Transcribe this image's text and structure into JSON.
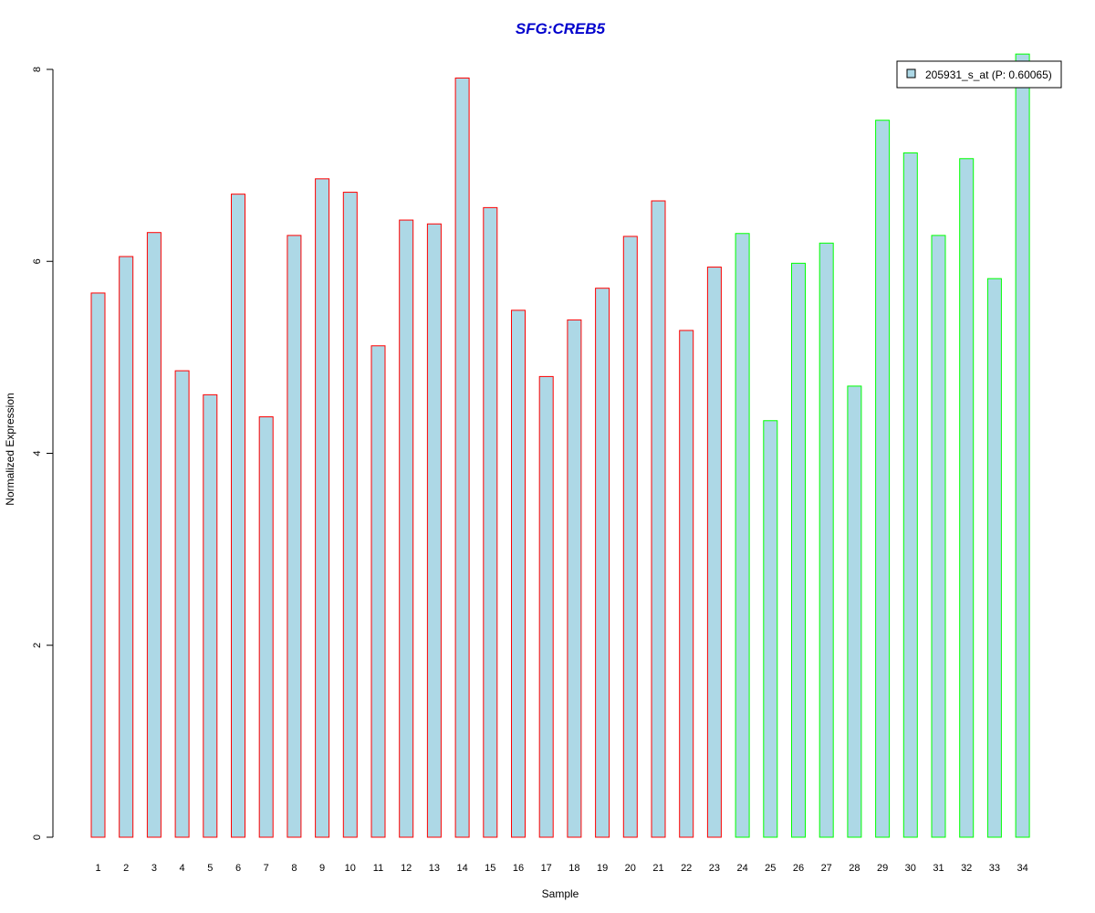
{
  "chart_data": {
    "type": "bar",
    "title": "SFG:CREB5",
    "xlabel": "Sample",
    "ylabel": "Normalized Expression",
    "ylim": [
      0,
      8
    ],
    "yticks": [
      "0",
      "2",
      "4",
      "6",
      "8"
    ],
    "grid": false,
    "legend_position": "top-right",
    "categories": [
      "1",
      "2",
      "3",
      "4",
      "5",
      "6",
      "7",
      "8",
      "9",
      "10",
      "11",
      "12",
      "13",
      "14",
      "15",
      "16",
      "17",
      "18",
      "19",
      "20",
      "21",
      "22",
      "23",
      "24",
      "25",
      "26",
      "27",
      "28",
      "29",
      "30",
      "31",
      "32",
      "33",
      "34"
    ],
    "series": [
      {
        "name": "205931_s_at (P: 0.60065)",
        "values": [
          5.67,
          6.05,
          6.3,
          4.86,
          4.61,
          6.7,
          4.38,
          6.27,
          6.86,
          6.72,
          5.12,
          6.43,
          6.39,
          7.91,
          6.56,
          5.49,
          4.8,
          5.39,
          5.72,
          6.26,
          6.63,
          5.28,
          5.94,
          6.29,
          4.34,
          5.98,
          6.19,
          4.7,
          7.47,
          7.13,
          6.27,
          7.07,
          5.82,
          8.16
        ],
        "groups": [
          "a",
          "a",
          "a",
          "a",
          "a",
          "a",
          "a",
          "a",
          "a",
          "a",
          "a",
          "a",
          "a",
          "a",
          "a",
          "a",
          "a",
          "a",
          "a",
          "a",
          "a",
          "a",
          "a",
          "b",
          "b",
          "b",
          "b",
          "b",
          "b",
          "b",
          "b",
          "b",
          "b",
          "b"
        ]
      }
    ],
    "colors": {
      "bar_fill": "#add8e6",
      "group_a_border": "#ff0000",
      "group_b_border": "#00ff00",
      "title": "#0000cd",
      "axis": "#000000"
    }
  }
}
